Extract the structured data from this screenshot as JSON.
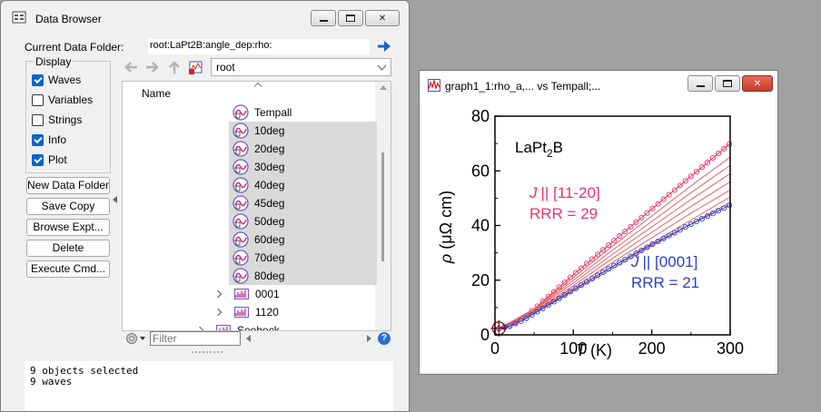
{
  "data_browser": {
    "title": "Data Browser",
    "current_folder_label": "Current Data Folder:",
    "current_folder_value": "root:LaPt2B:angle_dep:rho:",
    "display_group_label": "Display",
    "checkboxes": [
      {
        "label": "Waves",
        "checked": true
      },
      {
        "label": "Variables",
        "checked": false
      },
      {
        "label": "Strings",
        "checked": false
      },
      {
        "label": "Info",
        "checked": true
      },
      {
        "label": "Plot",
        "checked": true
      }
    ],
    "buttons": [
      "New Data Folder",
      "Save Copy",
      "Browse Expt...",
      "Delete",
      "Execute Cmd..."
    ],
    "folder_select": "root",
    "column_header": "Name",
    "tree_rows": [
      {
        "label": "Tempall",
        "kind": "wave",
        "selected": false
      },
      {
        "label": "10deg",
        "kind": "wave",
        "selected": true
      },
      {
        "label": "20deg",
        "kind": "wave",
        "selected": true
      },
      {
        "label": "30deg",
        "kind": "wave",
        "selected": true
      },
      {
        "label": "40deg",
        "kind": "wave",
        "selected": true
      },
      {
        "label": "45deg",
        "kind": "wave",
        "selected": true
      },
      {
        "label": "50deg",
        "kind": "wave",
        "selected": true
      },
      {
        "label": "60deg",
        "kind": "wave",
        "selected": true
      },
      {
        "label": "70deg",
        "kind": "wave",
        "selected": true
      },
      {
        "label": "80deg",
        "kind": "wave",
        "selected": true
      },
      {
        "label": "0001",
        "kind": "folder",
        "selected": false
      },
      {
        "label": "1120",
        "kind": "folder",
        "selected": false
      },
      {
        "label": "Seebeck",
        "kind": "folder",
        "selected": false
      }
    ],
    "filter_placeholder": "Filter",
    "help_glyph": "?",
    "status_lines": [
      "9 objects selected",
      "9 waves"
    ]
  },
  "graph_window": {
    "title": "graph1_1:rho_a,... vs Tempall;...",
    "colors": {
      "upper": "#e8336f",
      "lower": "#2a3fc7",
      "mid": "#e06666"
    }
  },
  "chart_data": {
    "type": "line",
    "xlabel_var": "T",
    "xlabel_unit": "(K)",
    "ylabel_var": "ρ",
    "ylabel_unit": "(μΩ cm)",
    "xlim": [
      0,
      300
    ],
    "ylim": [
      0,
      80
    ],
    "xticks": [
      0,
      100,
      200,
      300
    ],
    "yticks": [
      0,
      20,
      40,
      60,
      80
    ],
    "annotations": {
      "compound": "LaPt",
      "compound_sub": "2",
      "compound_tail": "B",
      "upper_J": "J",
      "upper_dir": "|| [11-20]",
      "upper_rrr": "RRR = 29",
      "lower_J": "J",
      "lower_dir": "|| [0001]",
      "lower_rrr": "RRR = 21"
    },
    "series": [
      {
        "label": "J || [11-20]",
        "x": [
          5,
          20,
          40,
          60,
          80,
          100,
          150,
          200,
          250,
          300
        ],
        "y": [
          2.4,
          3.5,
          7,
          12,
          17,
          22,
          34,
          46,
          58,
          70
        ],
        "marker": "circle"
      },
      {
        "x": [
          5,
          50,
          100,
          150,
          200,
          250,
          300
        ],
        "y": [
          2.3,
          9.5,
          21,
          32.5,
          43.5,
          54.5,
          65
        ]
      },
      {
        "x": [
          5,
          50,
          100,
          150,
          200,
          250,
          300
        ],
        "y": [
          2.3,
          9.2,
          20,
          31,
          41.5,
          52,
          62
        ]
      },
      {
        "x": [
          5,
          50,
          100,
          150,
          200,
          250,
          300
        ],
        "y": [
          2.3,
          9,
          19,
          29.5,
          39.5,
          49.5,
          59
        ]
      },
      {
        "x": [
          5,
          50,
          100,
          150,
          200,
          250,
          300
        ],
        "y": [
          2.3,
          8.6,
          18,
          28,
          37.5,
          47,
          56
        ]
      },
      {
        "x": [
          5,
          50,
          100,
          150,
          200,
          250,
          300
        ],
        "y": [
          2.3,
          8.3,
          17.2,
          26.5,
          35.5,
          44.5,
          53
        ]
      },
      {
        "x": [
          5,
          50,
          100,
          150,
          200,
          250,
          300
        ],
        "y": [
          2.3,
          8,
          16.5,
          25,
          33.5,
          42,
          50.5
        ]
      },
      {
        "x": [
          5,
          50,
          100,
          150,
          200,
          250,
          300
        ],
        "y": [
          2.3,
          7.8,
          16,
          24.2,
          32.5,
          40.5,
          48.5
        ]
      },
      {
        "label": "J || [0001]",
        "x": [
          5,
          20,
          40,
          60,
          80,
          100,
          150,
          200,
          250,
          300
        ],
        "y": [
          2.3,
          3.3,
          6,
          9.5,
          13,
          16.5,
          25,
          33,
          40.5,
          47.5
        ],
        "marker": "circle"
      }
    ]
  }
}
